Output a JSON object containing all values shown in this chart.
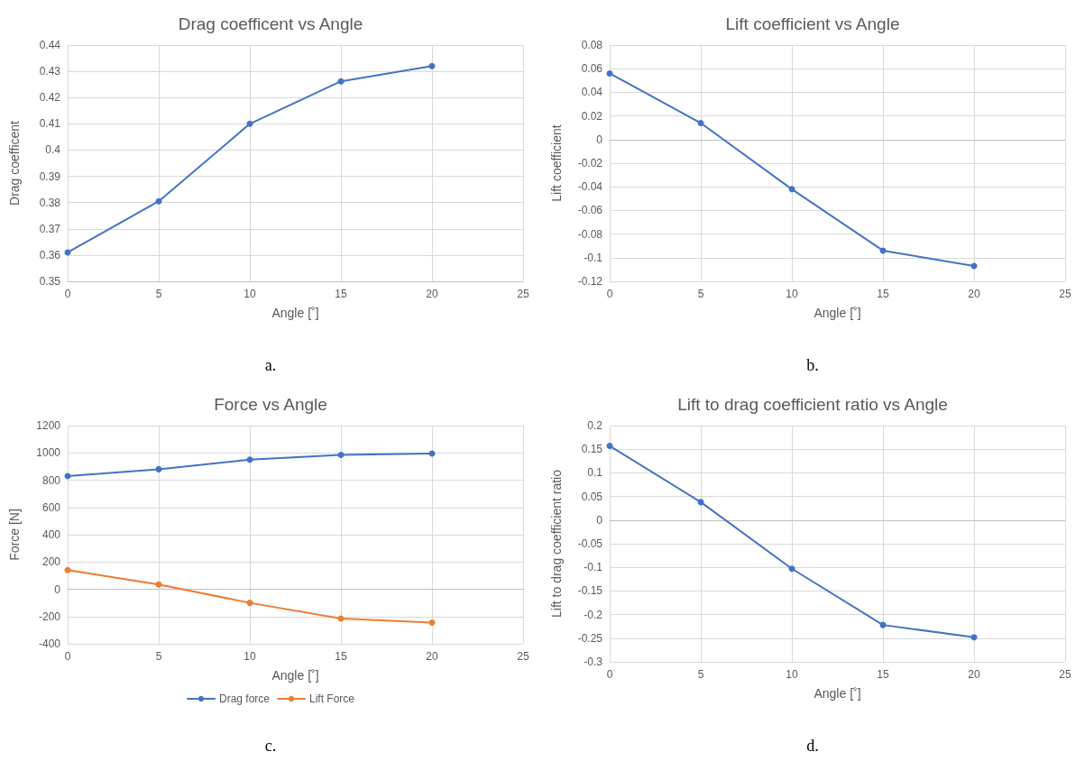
{
  "chart_data": [
    {
      "type": "line",
      "title": "Drag coefficent vs Angle",
      "xlabel": "Angle [˚]",
      "ylabel": "Drag coefficent",
      "x": [
        0,
        5,
        10,
        15,
        20
      ],
      "xlim": [
        0,
        25
      ],
      "xticks": [
        0,
        5,
        10,
        15,
        20,
        25
      ],
      "ylim": [
        0.35,
        0.44
      ],
      "yticks": [
        0.35,
        0.36,
        0.37,
        0.38,
        0.39,
        0.4,
        0.41,
        0.42,
        0.43,
        0.44
      ],
      "grid": true,
      "marker": "circle",
      "annotations": [
        "a."
      ],
      "series": [
        {
          "color": "#4472c4",
          "values": [
            0.361,
            0.3805,
            0.41,
            0.4262,
            0.432
          ]
        }
      ]
    },
    {
      "type": "line",
      "title": "Lift coefficient vs Angle",
      "xlabel": "Angle [˚]",
      "ylabel": "Lift coefficient",
      "x": [
        0,
        5,
        10,
        15,
        20
      ],
      "xlim": [
        0,
        25
      ],
      "xticks": [
        0,
        5,
        10,
        15,
        20,
        25
      ],
      "ylim": [
        -0.12,
        0.08
      ],
      "yticks": [
        -0.12,
        -0.1,
        -0.08,
        -0.06,
        -0.04,
        -0.02,
        0,
        0.02,
        0.04,
        0.06,
        0.08
      ],
      "grid": true,
      "marker": "circle",
      "annotations": [
        "b."
      ],
      "series": [
        {
          "color": "#4472c4",
          "values": [
            0.056,
            0.014,
            -0.042,
            -0.094,
            -0.107
          ]
        }
      ]
    },
    {
      "type": "line",
      "title": "Force vs Angle",
      "xlabel": "Angle [˚]",
      "ylabel": "Force [N]",
      "x": [
        0,
        5,
        10,
        15,
        20
      ],
      "xlim": [
        0,
        25
      ],
      "xticks": [
        0,
        5,
        10,
        15,
        20,
        25
      ],
      "ylim": [
        -400,
        1200
      ],
      "yticks": [
        -400,
        -200,
        0,
        200,
        400,
        600,
        800,
        1000,
        1200
      ],
      "grid": true,
      "marker": "circle",
      "legend": "bottom",
      "annotations": [
        "c."
      ],
      "series": [
        {
          "name": "Drag force",
          "color": "#4472c4",
          "values": [
            830,
            880,
            950,
            985,
            995
          ]
        },
        {
          "name": "Lift Force",
          "color": "#ed7d31",
          "values": [
            140,
            35,
            -100,
            -215,
            -245
          ]
        }
      ]
    },
    {
      "type": "line",
      "title": "Lift to drag coefficient ratio vs Angle",
      "xlabel": "Angle [˚]",
      "ylabel": "Lift to drag coefficient ratio",
      "x": [
        0,
        5,
        10,
        15,
        20
      ],
      "xlim": [
        0,
        25
      ],
      "xticks": [
        0,
        5,
        10,
        15,
        20,
        25
      ],
      "ylim": [
        -0.3,
        0.2
      ],
      "yticks": [
        -0.3,
        -0.25,
        -0.2,
        -0.15,
        -0.1,
        -0.05,
        0,
        0.05,
        0.1,
        0.15,
        0.2
      ],
      "grid": true,
      "marker": "circle",
      "annotations": [
        "d."
      ],
      "series": [
        {
          "color": "#4472c4",
          "values": [
            0.157,
            0.038,
            -0.103,
            -0.222,
            -0.248
          ]
        }
      ]
    }
  ]
}
